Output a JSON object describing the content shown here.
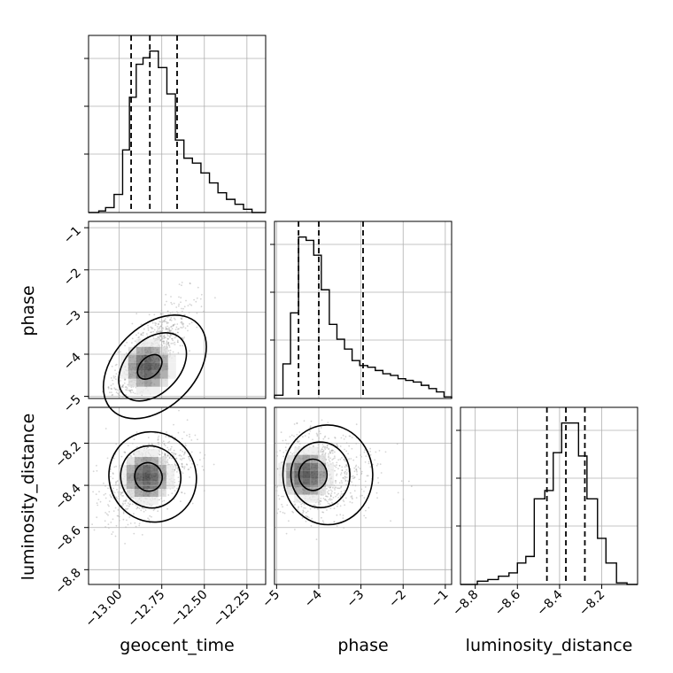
{
  "chart_data": {
    "type": "corner",
    "parameters": [
      "geocent_time",
      "phase",
      "luminosity_distance"
    ],
    "ranges": {
      "geocent_time": [
        -13.18,
        -12.14
      ],
      "phase": [
        -5.05,
        -0.85
      ],
      "luminosity_distance": [
        -8.87,
        -8.03
      ]
    },
    "ticks": {
      "geocent_time": [
        -13.0,
        -12.75,
        -12.5,
        -12.25
      ],
      "phase": [
        -5,
        -4,
        -3,
        -2,
        -1
      ],
      "luminosity_distance": [
        -8.8,
        -8.6,
        -8.4,
        -8.2
      ]
    },
    "tick_labels": {
      "geocent_time": [
        "−13.00",
        "−12.75",
        "−12.50",
        "−12.25"
      ],
      "phase": [
        "−5",
        "−4",
        "−3",
        "−2",
        "−1"
      ],
      "luminosity_distance": [
        "−8.8",
        "−8.6",
        "−8.4",
        "−8.2"
      ]
    },
    "quantiles": {
      "geocent_time": [
        -12.93,
        -12.82,
        -12.66
      ],
      "phase": [
        -4.48,
        -4.0,
        -2.95
      ],
      "luminosity_distance": [
        -8.46,
        -8.37,
        -8.28
      ]
    },
    "histograms": {
      "geocent_time": {
        "edges": [
          -13.18,
          -13.12,
          -13.08,
          -13.03,
          -12.98,
          -12.94,
          -12.9,
          -12.86,
          -12.82,
          -12.77,
          -12.72,
          -12.67,
          -12.62,
          -12.57,
          -12.52,
          -12.47,
          -12.42,
          -12.37,
          -12.32,
          -12.27,
          -12.22,
          -12.14
        ],
        "counts": [
          0.0,
          0.01,
          0.03,
          0.11,
          0.38,
          0.7,
          0.9,
          0.94,
          0.98,
          0.88,
          0.72,
          0.44,
          0.33,
          0.3,
          0.24,
          0.18,
          0.12,
          0.08,
          0.05,
          0.02,
          0.0
        ]
      },
      "phase": {
        "edges": [
          -5.05,
          -4.85,
          -4.67,
          -4.48,
          -4.3,
          -4.12,
          -3.94,
          -3.75,
          -3.57,
          -3.39,
          -3.21,
          -3.03,
          -2.84,
          -2.66,
          -2.48,
          -2.3,
          -2.12,
          -1.94,
          -1.76,
          -1.57,
          -1.39,
          -1.21,
          -1.03,
          -0.85
        ],
        "counts": [
          0.02,
          0.21,
          0.52,
          0.98,
          0.96,
          0.87,
          0.66,
          0.45,
          0.36,
          0.3,
          0.23,
          0.2,
          0.19,
          0.17,
          0.15,
          0.14,
          0.12,
          0.11,
          0.1,
          0.08,
          0.06,
          0.04,
          0.01
        ]
      },
      "luminosity_distance": {
        "edges": [
          -8.87,
          -8.79,
          -8.74,
          -8.69,
          -8.64,
          -8.6,
          -8.56,
          -8.52,
          -8.47,
          -8.43,
          -8.39,
          -8.35,
          -8.31,
          -8.27,
          -8.22,
          -8.18,
          -8.13,
          -8.08,
          -8.03
        ],
        "counts": [
          0.0,
          0.02,
          0.03,
          0.05,
          0.07,
          0.13,
          0.17,
          0.52,
          0.57,
          0.8,
          0.98,
          0.98,
          0.78,
          0.52,
          0.28,
          0.13,
          0.01,
          0.0
        ]
      }
    },
    "scatter_2d": [
      {
        "x_param": "geocent_time",
        "y_param": "phase",
        "center": [
          -12.83,
          -4.3
        ],
        "spread": [
          0.12,
          0.6
        ],
        "correlation": 0.82,
        "contour_sizes": [
          0.45,
          1.25,
          1.9
        ]
      },
      {
        "x_param": "geocent_time",
        "y_param": "luminosity_distance",
        "center": [
          -12.84,
          -8.36
        ],
        "spread": [
          0.12,
          0.1
        ],
        "correlation": 0.45,
        "contour_sizes": [
          0.55,
          1.2,
          1.75
        ]
      },
      {
        "x_param": "phase",
        "y_param": "luminosity_distance",
        "center": [
          -4.3,
          -8.35
        ],
        "spread": [
          0.45,
          0.1
        ],
        "correlation": 0.05,
        "contour_sizes": [
          0.55,
          1.15,
          1.75
        ]
      }
    ],
    "grid": true
  }
}
